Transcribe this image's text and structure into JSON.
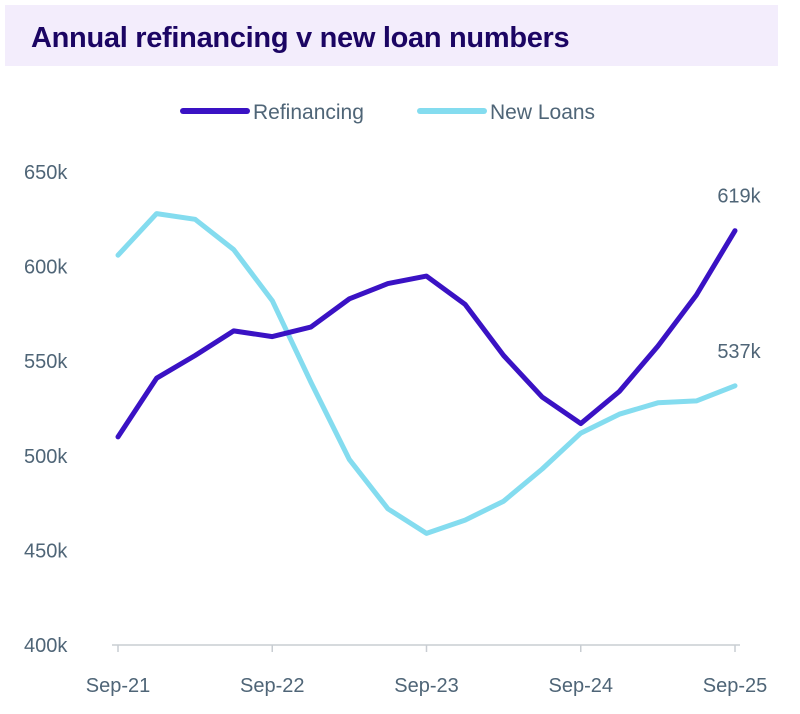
{
  "chart_data": {
    "type": "line",
    "title": "Annual refinancing v new loan numbers",
    "x": [
      "Sep-21",
      "Dec-21",
      "Mar-22",
      "Jun-22",
      "Sep-22",
      "Dec-22",
      "Mar-23",
      "Jun-23",
      "Sep-23",
      "Dec-23",
      "Mar-24",
      "Jun-24",
      "Sep-24",
      "Dec-24",
      "Mar-25",
      "Jun-25",
      "Sep-25"
    ],
    "x_tick_labels": [
      "Sep-21",
      "Sep-22",
      "Sep-23",
      "Sep-24",
      "Sep-25"
    ],
    "y_tick_labels": [
      "400k",
      "450k",
      "500k",
      "550k",
      "600k",
      "650k"
    ],
    "ylim": [
      400,
      650
    ],
    "yunit": "k",
    "grid": false,
    "legend": "top-center",
    "series": [
      {
        "name": "Refinancing",
        "color": "#3a12c4",
        "values": [
          510,
          541,
          553,
          566,
          563,
          568,
          583,
          591,
          595,
          580,
          553,
          531,
          517,
          534,
          558,
          585,
          619
        ],
        "end_label": "619k"
      },
      {
        "name": "New Loans",
        "color": "#84dcef",
        "values": [
          606,
          628,
          625,
          609,
          582,
          539,
          498,
          472,
          459,
          466,
          476,
          493,
          512,
          522,
          528,
          529,
          537
        ],
        "end_label": "537k"
      }
    ]
  }
}
